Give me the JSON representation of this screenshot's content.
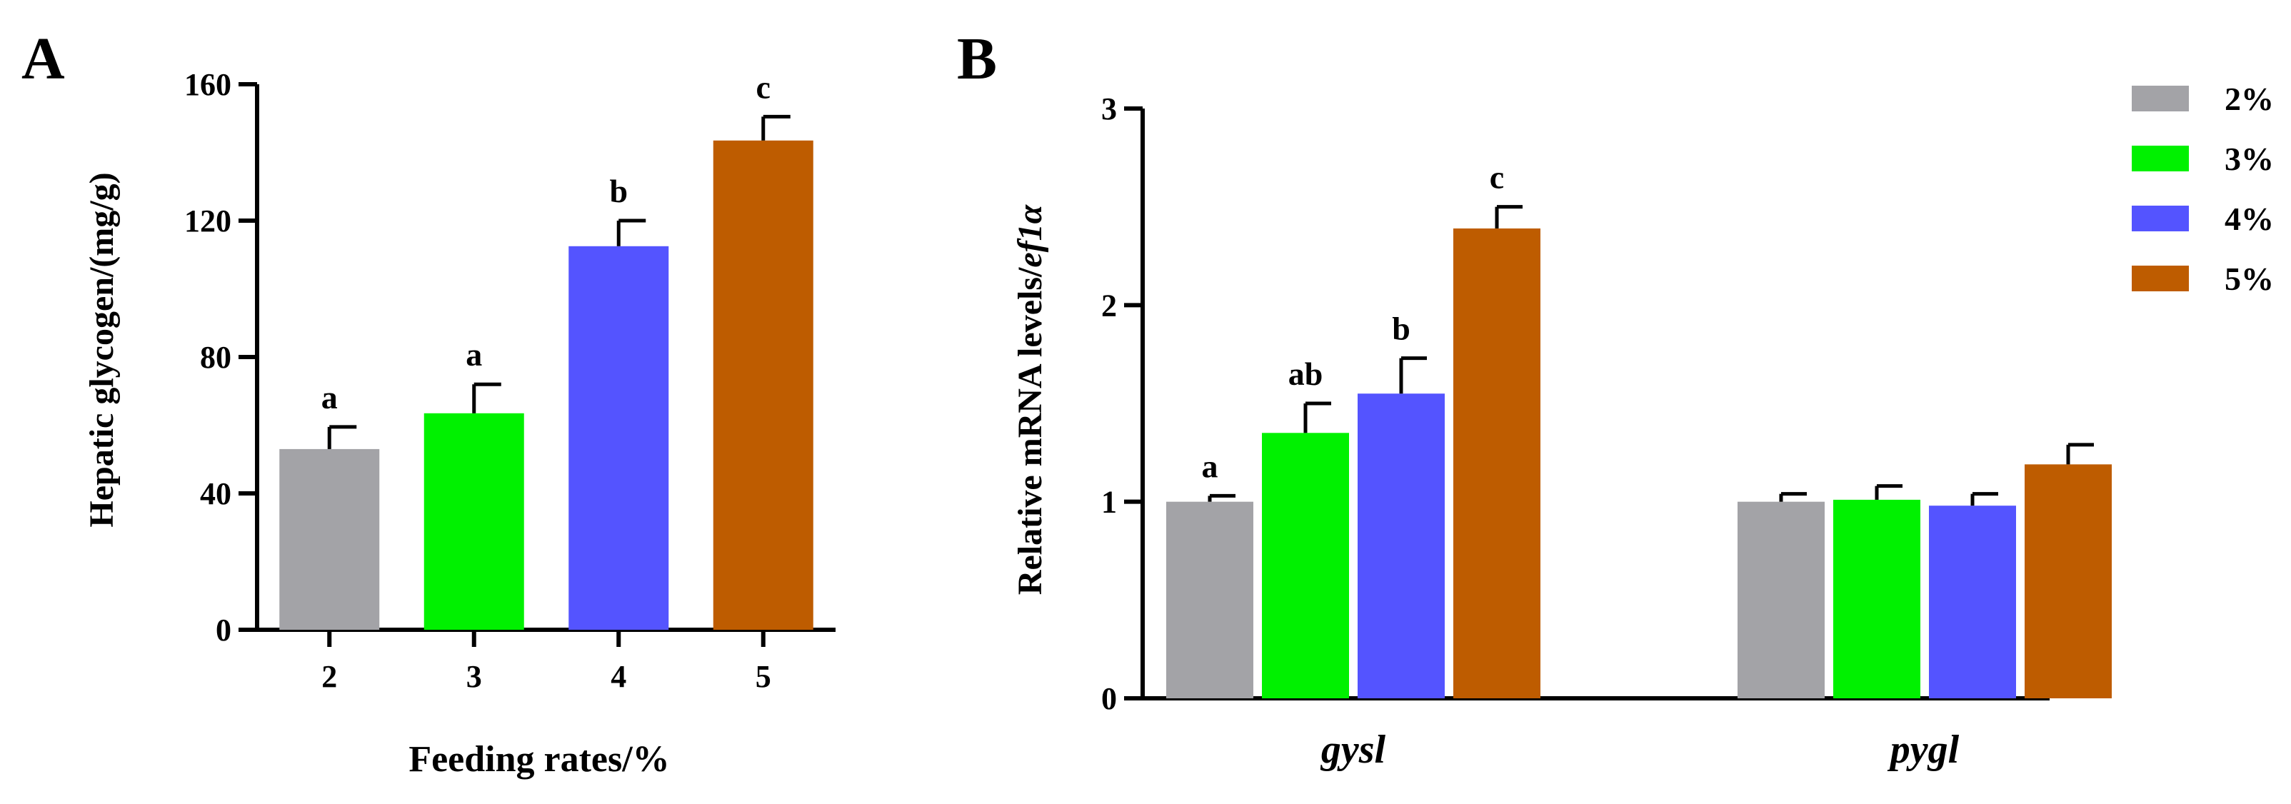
{
  "chart_data": [
    {
      "panel": "A",
      "type": "bar",
      "title": "",
      "xlabel": "Feeding rates/%",
      "ylabel": "Hepatic glycogen/(mg/g)",
      "ylim": [
        0,
        160
      ],
      "yticks": [
        "0",
        "40",
        "80",
        "120",
        "160"
      ],
      "categories": [
        "2",
        "3",
        "4",
        "5"
      ],
      "values": [
        53,
        63.5,
        112.5,
        143.5
      ],
      "errors": [
        6.5,
        8.5,
        7.5,
        7
      ],
      "significance": [
        "a",
        "a",
        "b",
        "c"
      ],
      "colors": [
        "#a3a3a7",
        "#00f100",
        "#5454ff",
        "#be5c00"
      ]
    },
    {
      "panel": "B",
      "type": "bar",
      "title": "",
      "xlabel": "",
      "ylabel_prefix": "Relative mRNA levels/",
      "ylabel_italic": "ef1α",
      "ylim": [
        0,
        3
      ],
      "yticks": [
        "0",
        "1",
        "2",
        "3"
      ],
      "categories": [
        "gysl",
        "pygl"
      ],
      "series": [
        {
          "name": "2%",
          "color": "#a3a3a7",
          "values": [
            1.0,
            1.0
          ],
          "errors": [
            0.03,
            0.04
          ],
          "significance": [
            "a",
            ""
          ]
        },
        {
          "name": "3%",
          "color": "#00f100",
          "values": [
            1.35,
            1.01
          ],
          "errors": [
            0.15,
            0.07
          ],
          "significance": [
            "ab",
            ""
          ]
        },
        {
          "name": "4%",
          "color": "#5454ff",
          "values": [
            1.55,
            0.98
          ],
          "errors": [
            0.18,
            0.06
          ],
          "significance": [
            "b",
            ""
          ]
        },
        {
          "name": "5%",
          "color": "#be5c00",
          "values": [
            2.39,
            1.19
          ],
          "errors": [
            0.11,
            0.1
          ],
          "significance": [
            "c",
            ""
          ]
        }
      ],
      "legend": [
        "2%",
        "3%",
        "4%",
        "5%"
      ],
      "legend_position": "top-right"
    }
  ]
}
